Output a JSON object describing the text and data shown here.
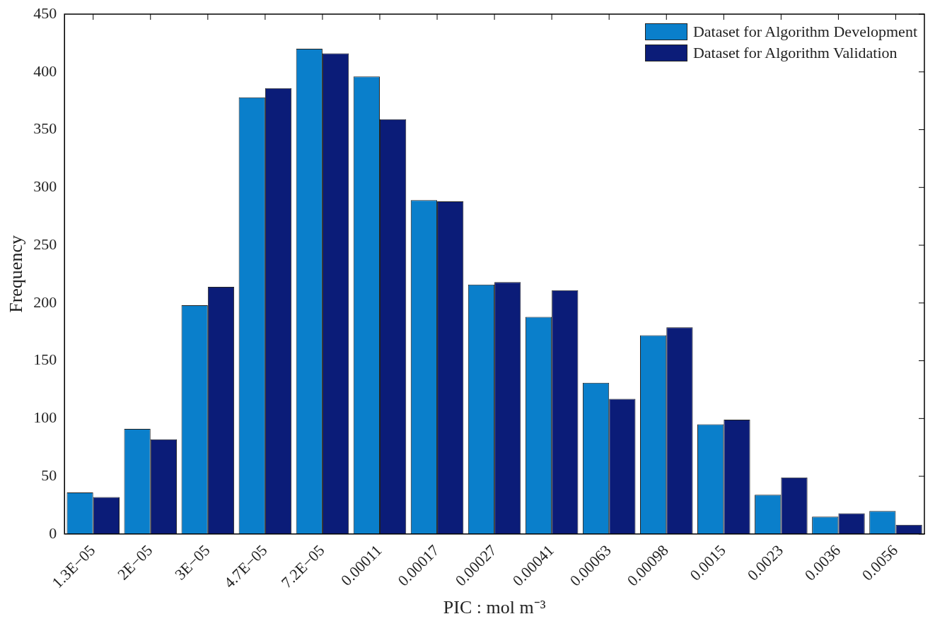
{
  "chart_data": {
    "type": "bar",
    "xlabel": "PIC : mol m⁻³",
    "ylabel": "Frequency",
    "categories": [
      "1.3E−05",
      "2E−05",
      "3E−05",
      "4.7E−05",
      "7.2E−05",
      "0.00011",
      "0.00017",
      "0.00027",
      "0.00041",
      "0.00063",
      "0.00098",
      "0.0015",
      "0.0023",
      "0.0036",
      "0.0056"
    ],
    "series": [
      {
        "name": "Dataset for Algorithm Development",
        "color": "#0a7fcb",
        "values": [
          36,
          91,
          198,
          378,
          420,
          396,
          289,
          216,
          188,
          131,
          172,
          95,
          34,
          15,
          20
        ]
      },
      {
        "name": "Dataset for Algorithm Validation",
        "color": "#0b1c78",
        "values": [
          32,
          82,
          214,
          386,
          416,
          359,
          288,
          218,
          211,
          117,
          179,
          99,
          49,
          18,
          8
        ]
      }
    ],
    "ylim": [
      0,
      450
    ],
    "yticks": [
      0,
      50,
      100,
      150,
      200,
      250,
      300,
      350,
      400,
      450
    ],
    "grid": false,
    "legend": "top right"
  }
}
